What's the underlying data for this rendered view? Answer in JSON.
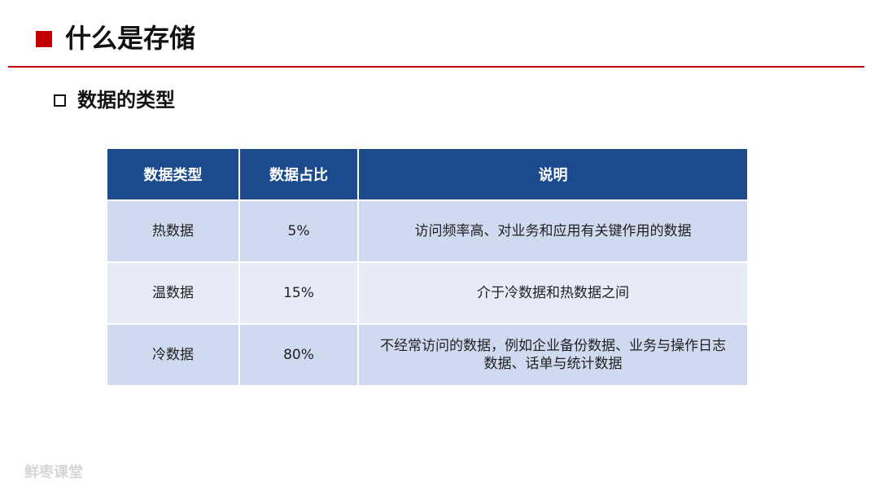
{
  "header": {
    "title": "什么是存储"
  },
  "section": {
    "title": "数据的类型"
  },
  "table": {
    "columns": [
      "数据类型",
      "数据占比",
      "说明"
    ],
    "rows": [
      [
        "热数据",
        "5%",
        "访问频率高、对业务和应用有关键作用的数据"
      ],
      [
        "温数据",
        "15%",
        "介于冷数据和热数据之间"
      ],
      [
        "冷数据",
        "80%",
        "不经常访问的数据，例如企业备份数据、业务与操作日志数据、话单与统计数据"
      ]
    ]
  },
  "footer": {
    "watermark": "鲜枣课堂"
  }
}
